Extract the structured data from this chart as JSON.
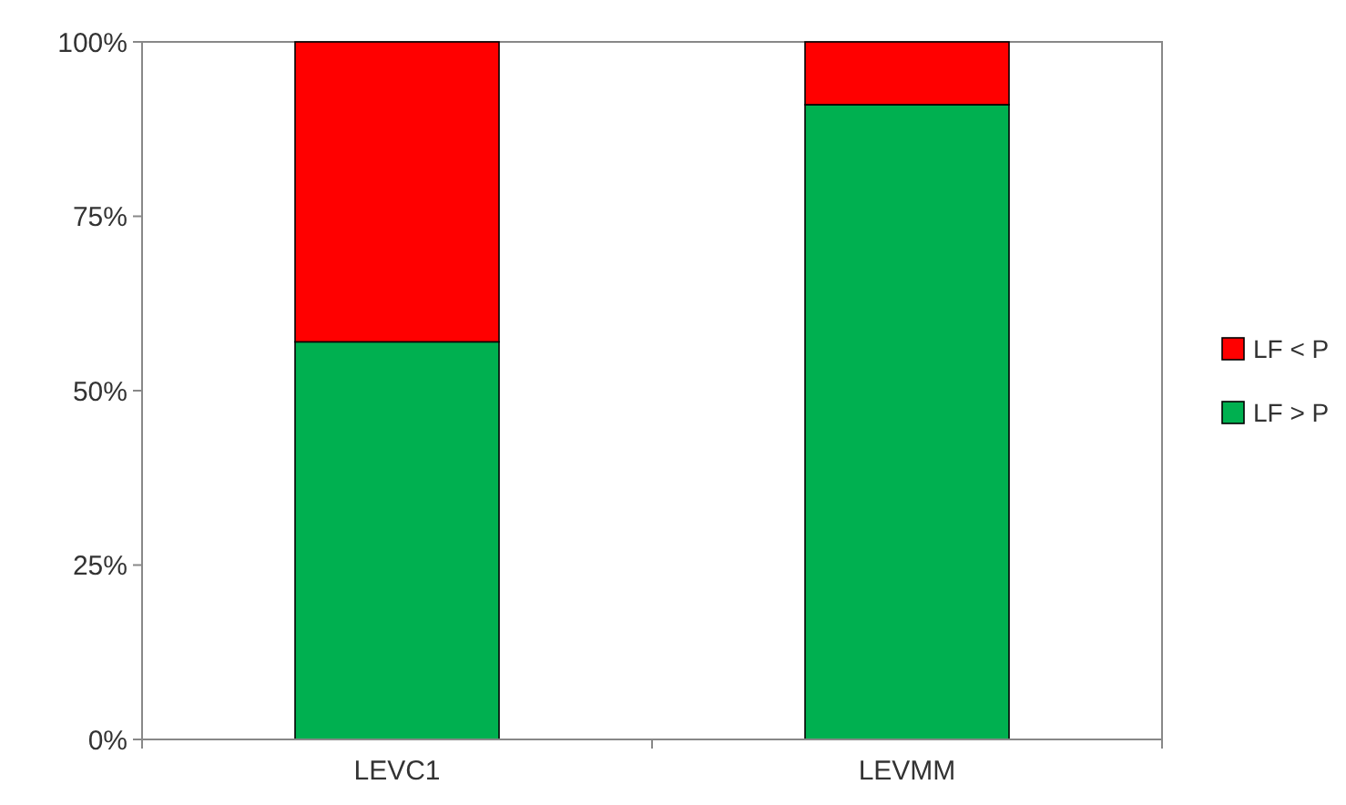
{
  "chart_data": {
    "type": "bar",
    "stacked": true,
    "categories": [
      "LEVC1",
      "LEVMM"
    ],
    "series": [
      {
        "name": "LF > P",
        "color": "#00b050",
        "values": [
          57,
          91
        ]
      },
      {
        "name": "LF < P",
        "color": "#ff0000",
        "values": [
          43,
          9
        ]
      }
    ],
    "ylim": [
      0,
      100
    ],
    "yticks": [
      {
        "value": 0,
        "label": "0%"
      },
      {
        "value": 25,
        "label": "25%"
      },
      {
        "value": 50,
        "label": "50%"
      },
      {
        "value": 75,
        "label": "75%"
      },
      {
        "value": 100,
        "label": "100%"
      }
    ],
    "grid": false,
    "legend": "right"
  }
}
